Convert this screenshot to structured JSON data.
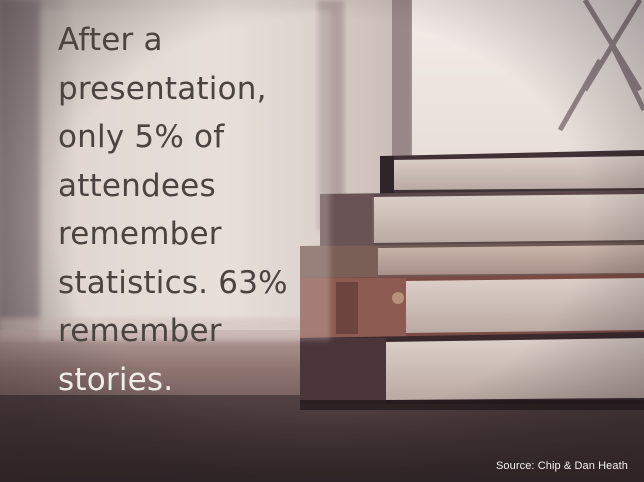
{
  "quote": {
    "lines": [
      "After a",
      "presentation,",
      "only 5% of",
      "attendees",
      "remember",
      "statistics. 63%",
      "remember",
      "stories."
    ]
  },
  "source": {
    "text": "Source: Chip & Dan Heath"
  },
  "colors": {
    "quote_text": "#4a4340",
    "quote_text_light": "#f2ece8",
    "source_text": "#f4f1ef"
  }
}
